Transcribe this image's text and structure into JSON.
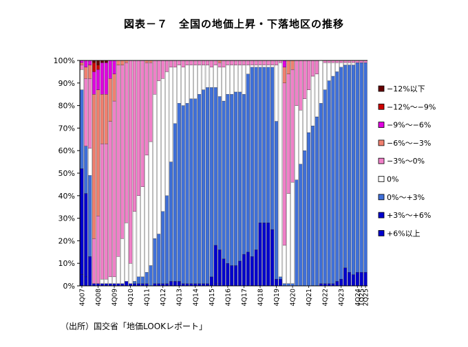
{
  "title": "図表－７　全国の地価上昇・下落地区の推移",
  "source": "（出所）国交省「地価LOOKレポート」",
  "chart_data": {
    "type": "bar",
    "stacked": true,
    "normalized": true,
    "ylim": [
      0,
      100
    ],
    "yticks": [
      "0%",
      "10%",
      "20%",
      "30%",
      "40%",
      "50%",
      "60%",
      "70%",
      "80%",
      "90%",
      "100%"
    ],
    "grid": false,
    "legend_position": "right",
    "categories": [
      "4Q07",
      "1Q08",
      "2Q08",
      "3Q08",
      "4Q08",
      "1Q09",
      "2Q09",
      "3Q09",
      "4Q09",
      "1Q10",
      "2Q10",
      "3Q10",
      "4Q10",
      "1Q11",
      "2Q11",
      "3Q11",
      "4Q11",
      "1Q12",
      "2Q12",
      "3Q12",
      "4Q12",
      "1Q13",
      "2Q13",
      "3Q13",
      "4Q13",
      "1Q14",
      "2Q14",
      "3Q14",
      "4Q14",
      "1Q15",
      "2Q15",
      "3Q15",
      "4Q15",
      "1Q16",
      "2Q16",
      "3Q16",
      "4Q16",
      "1Q17",
      "2Q17",
      "3Q17",
      "4Q17",
      "1Q18",
      "2Q18",
      "3Q18",
      "4Q18",
      "1Q19",
      "2Q19",
      "3Q19",
      "4Q19",
      "1Q20",
      "2Q20",
      "3Q20",
      "4Q20",
      "1Q21",
      "2Q21",
      "3Q21",
      "4Q21",
      "1Q22",
      "2Q22",
      "3Q22",
      "4Q22",
      "1Q23",
      "2Q23",
      "3Q23",
      "4Q23",
      "1Q24",
      "2Q24",
      "3Q24",
      "4Q24",
      "1Q25",
      "2Q25"
    ],
    "series": [
      {
        "name": "+6%以上",
        "color": "#0000CC",
        "values": [
          5,
          4,
          0,
          0,
          0,
          0,
          0,
          0,
          0,
          0,
          0,
          0,
          0,
          0,
          0,
          0,
          0,
          0,
          0,
          0,
          0,
          0,
          0,
          0,
          0,
          0,
          0,
          0,
          0,
          0,
          0,
          0,
          0,
          1,
          1,
          0,
          0,
          0,
          0,
          0,
          0,
          0,
          0,
          0,
          0,
          0,
          0,
          0,
          0,
          3,
          0,
          0,
          0,
          0,
          0,
          0,
          0,
          0,
          0,
          0,
          0,
          0,
          0,
          0,
          0,
          0,
          0,
          0,
          0,
          0,
          0
        ]
      },
      {
        "name": "+3%～+6%",
        "color": "#0000CC",
        "values": [
          47,
          37,
          13,
          1,
          1,
          1,
          1,
          1,
          1,
          1,
          1,
          2,
          1,
          1,
          1,
          1,
          1,
          0,
          1,
          1,
          1,
          1,
          2,
          2,
          2,
          1,
          1,
          1,
          1,
          1,
          1,
          1,
          4,
          17,
          15,
          12,
          10,
          9,
          9,
          11,
          14,
          15,
          13,
          16,
          28,
          28,
          28,
          25,
          3,
          0,
          0,
          0,
          0,
          0,
          0,
          0,
          0,
          0,
          0,
          1,
          1,
          1,
          1,
          2,
          3,
          8,
          6,
          5,
          6,
          6,
          6
        ]
      },
      {
        "name": "0%～+3%",
        "color": "#3F6FD8",
        "values": [
          35,
          21,
          36,
          0,
          0,
          0,
          0,
          0,
          0,
          0,
          0,
          0,
          0,
          1,
          3,
          3,
          5,
          9,
          20,
          22,
          32,
          39,
          53,
          70,
          79,
          79,
          80,
          82,
          82,
          84,
          86,
          87,
          84,
          70,
          68,
          70,
          75,
          76,
          77,
          75,
          71,
          79,
          84,
          81,
          69,
          69,
          69,
          72,
          70,
          1,
          1,
          1,
          1,
          47,
          54,
          60,
          68,
          71,
          75,
          80,
          86,
          90,
          92,
          93,
          94,
          90,
          92,
          93,
          93,
          93,
          93
        ]
      },
      {
        "name": "0%",
        "color": "#FFFFFF",
        "values": [
          9,
          0,
          12,
          0,
          0,
          2,
          2,
          3,
          3,
          12,
          20,
          26,
          9,
          31,
          36,
          40,
          52,
          55,
          64,
          68,
          59,
          55,
          42,
          25,
          17,
          17,
          17,
          15,
          15,
          13,
          11,
          10,
          9,
          10,
          13,
          15,
          13,
          13,
          12,
          12,
          13,
          4,
          1,
          1,
          1,
          1,
          1,
          1,
          25,
          95,
          17,
          40,
          45,
          33,
          24,
          23,
          19,
          22,
          19,
          19,
          12,
          8,
          6,
          4,
          2,
          1,
          1,
          1,
          0,
          0,
          0
        ]
      },
      {
        "name": "−3%～0%",
        "color": "#F080C8",
        "values": [
          2,
          30,
          31,
          20,
          30,
          60,
          60,
          69,
          78,
          85,
          77,
          71,
          90,
          67,
          60,
          56,
          41,
          35,
          15,
          9,
          8,
          5,
          3,
          3,
          2,
          3,
          2,
          2,
          2,
          2,
          2,
          2,
          3,
          2,
          2,
          3,
          2,
          2,
          2,
          2,
          2,
          2,
          2,
          2,
          2,
          2,
          2,
          2,
          2,
          1,
          72,
          53,
          50,
          20,
          22,
          17,
          13,
          7,
          6,
          0,
          1,
          1,
          1,
          1,
          1,
          1,
          1,
          1,
          1,
          1,
          1
        ]
      },
      {
        "name": "−6%～−3%",
        "color": "#F08070",
        "values": [
          1,
          5,
          6,
          64,
          56,
          22,
          22,
          19,
          12,
          2,
          2,
          1,
          0,
          0,
          0,
          0,
          1,
          1,
          0,
          0,
          0,
          0,
          0,
          0,
          0,
          0,
          0,
          0,
          0,
          0,
          0,
          0,
          0,
          0,
          1,
          0,
          0,
          0,
          0,
          0,
          0,
          0,
          0,
          0,
          0,
          0,
          0,
          0,
          0,
          0,
          7,
          6,
          4,
          0,
          0,
          0,
          0,
          0,
          0,
          0,
          0,
          0,
          0,
          0,
          0,
          0,
          0,
          0,
          0,
          0,
          0
        ]
      },
      {
        "name": "−9%～−6%",
        "color": "#E000E0",
        "values": [
          1,
          3,
          2,
          10,
          9,
          14,
          14,
          8,
          6,
          0,
          0,
          0,
          0,
          0,
          0,
          0,
          0,
          0,
          0,
          0,
          0,
          0,
          0,
          0,
          0,
          0,
          0,
          0,
          0,
          0,
          0,
          0,
          0,
          0,
          0,
          0,
          0,
          0,
          0,
          0,
          0,
          0,
          0,
          0,
          0,
          0,
          0,
          0,
          0,
          0,
          3,
          0,
          0,
          0,
          0,
          0,
          0,
          0,
          0,
          0,
          0,
          0,
          0,
          0,
          0,
          0,
          0,
          0,
          0,
          0,
          0
        ]
      },
      {
        "name": "−12%～−9%",
        "color": "#CC0000",
        "values": [
          0,
          0,
          0,
          4,
          2,
          0,
          0,
          0,
          0,
          0,
          0,
          0,
          0,
          0,
          0,
          0,
          0,
          0,
          0,
          0,
          0,
          0,
          0,
          0,
          0,
          0,
          0,
          0,
          0,
          0,
          0,
          0,
          0,
          0,
          0,
          0,
          0,
          0,
          0,
          0,
          0,
          0,
          0,
          0,
          0,
          0,
          0,
          0,
          0,
          0,
          0,
          0,
          0,
          0,
          0,
          0,
          0,
          0,
          0,
          0,
          0,
          0,
          0,
          0,
          0,
          0,
          0,
          0,
          0,
          0,
          0
        ]
      },
      {
        "name": "−12%以下",
        "color": "#660000",
        "values": [
          0,
          0,
          0,
          1,
          2,
          1,
          1,
          0,
          0,
          0,
          0,
          0,
          0,
          0,
          0,
          0,
          0,
          0,
          0,
          0,
          0,
          0,
          0,
          0,
          0,
          0,
          0,
          0,
          0,
          0,
          0,
          0,
          0,
          0,
          0,
          0,
          0,
          0,
          0,
          0,
          0,
          0,
          0,
          0,
          0,
          0,
          0,
          0,
          0,
          0,
          0,
          0,
          0,
          0,
          0,
          0,
          0,
          0,
          0,
          0,
          0,
          0,
          0,
          0,
          0,
          0,
          0,
          0,
          0,
          0,
          0
        ]
      }
    ],
    "legend_order": [
      "−12%以下",
      "−12%～−9%",
      "−9%～−6%",
      "−6%～−3%",
      "−3%～0%",
      "0%",
      "0%～+3%",
      "+3%～+6%",
      "+6%以上"
    ],
    "x_tick_labels": [
      "4Q07",
      "4Q08",
      "4Q09",
      "4Q10",
      "4Q11",
      "4Q12",
      "4Q13",
      "4Q14",
      "4Q15",
      "4Q16",
      "4Q17",
      "4Q18",
      "4Q19",
      "4Q20",
      "4Q21",
      "4Q22",
      "4Q23",
      "4Q24",
      "1Q25",
      "2Q25"
    ]
  }
}
